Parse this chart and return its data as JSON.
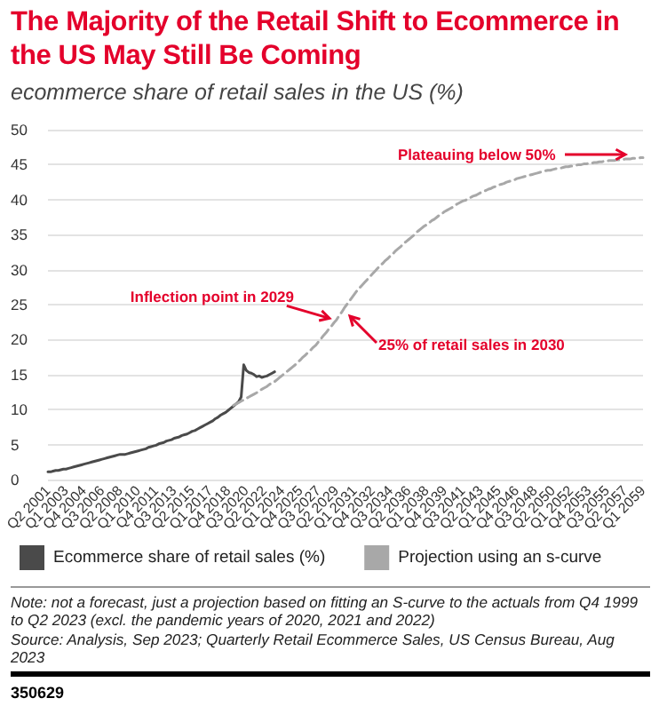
{
  "chart_data": {
    "type": "line",
    "title": "The Majority of the Retail Shift to Ecommerce in the US May Still Be Coming",
    "subtitle": "ecommerce share of retail sales in the US (%)",
    "categories": [
      "Q2 2001",
      null,
      null,
      null,
      null,
      null,
      null,
      "Q1 2003",
      null,
      null,
      null,
      null,
      null,
      null,
      "Q4 2004",
      null,
      null,
      null,
      null,
      null,
      null,
      "Q3 2006",
      null,
      null,
      null,
      null,
      null,
      null,
      "Q2 2008",
      null,
      null,
      null,
      null,
      null,
      null,
      "Q1 2010",
      null,
      null,
      null,
      null,
      null,
      null,
      "Q4 2011",
      null,
      null,
      null,
      null,
      null,
      null,
      "Q3 2013",
      null,
      null,
      null,
      null,
      null,
      null,
      "Q2 2015",
      null,
      null,
      null,
      null,
      null,
      null,
      "Q1 2017",
      null,
      null,
      null,
      null,
      null,
      null,
      "Q4 2018",
      null,
      null,
      null,
      null,
      null,
      null,
      "Q3 2020",
      null,
      null,
      null,
      null,
      null,
      null,
      "Q2 2022",
      null,
      null,
      null,
      null,
      null,
      null,
      "Q1 2024",
      null,
      null,
      null,
      null,
      null,
      null,
      "Q4 2025",
      null,
      null,
      null,
      null,
      null,
      null,
      "Q3 2027",
      null,
      null,
      null,
      null,
      null,
      null,
      "Q2 2029",
      null,
      null,
      null,
      null,
      null,
      null,
      "Q1 2031",
      null,
      null,
      null,
      null,
      null,
      null,
      "Q4 2032",
      null,
      null,
      null,
      null,
      null,
      null,
      "Q3 2034",
      null,
      null,
      null,
      null,
      null,
      null,
      "Q2 2036",
      null,
      null,
      null,
      null,
      null,
      null,
      "Q1 2038",
      null,
      null,
      null,
      null,
      null,
      null,
      "Q4 2039",
      null,
      null,
      null,
      null,
      null,
      null,
      "Q3 2041",
      null,
      null,
      null,
      null,
      null,
      null,
      "Q2 2043",
      null,
      null,
      null,
      null,
      null,
      null,
      "Q1 2045",
      null,
      null,
      null,
      null,
      null,
      null,
      "Q4 2046",
      null,
      null,
      null,
      null,
      null,
      null,
      "Q3 2048",
      null,
      null,
      null,
      null,
      null,
      null,
      "Q2 2050",
      null,
      null,
      null,
      null,
      null,
      null,
      "Q1 2052",
      null,
      null,
      null,
      null,
      null,
      null,
      "Q4 2053",
      null,
      null,
      null,
      null,
      null,
      null,
      "Q3 2055",
      null,
      null,
      null,
      null,
      null,
      null,
      "Q2 2057",
      null,
      null,
      null,
      null,
      null,
      null,
      "Q1 2059"
    ],
    "series": [
      {
        "name": "Ecommerce share of retail sales (%)",
        "color": "#4a4a4a",
        "line_style": "solid",
        "values": [
          1.1,
          1.1,
          1.2,
          1.3,
          1.3,
          1.4,
          1.5,
          1.5,
          1.6,
          1.7,
          1.8,
          1.9,
          2.0,
          2.1,
          2.2,
          2.3,
          2.4,
          2.5,
          2.6,
          2.7,
          2.8,
          2.9,
          3.0,
          3.1,
          3.2,
          3.3,
          3.4,
          3.5,
          3.6,
          3.6,
          3.6,
          3.7,
          3.8,
          3.9,
          4.0,
          4.1,
          4.2,
          4.3,
          4.4,
          4.6,
          4.7,
          4.8,
          4.9,
          5.1,
          5.2,
          5.3,
          5.5,
          5.6,
          5.7,
          5.9,
          6.0,
          6.1,
          6.3,
          6.4,
          6.5,
          6.7,
          6.9,
          7.0,
          7.2,
          7.4,
          7.6,
          7.8,
          8.0,
          8.2,
          8.4,
          8.7,
          8.9,
          9.2,
          9.4,
          9.6,
          9.9,
          10.2,
          10.5,
          10.8,
          11.1,
          11.8,
          16.4,
          15.6,
          15.3,
          15.2,
          15.0,
          14.7,
          14.8,
          14.6,
          14.7,
          14.8,
          15.0,
          15.2,
          15.4,
          null,
          null,
          null,
          null,
          null,
          null,
          null,
          null,
          null,
          null,
          null,
          null,
          null,
          null,
          null,
          null,
          null,
          null,
          null,
          null,
          null,
          null,
          null,
          null,
          null,
          null,
          null,
          null,
          null,
          null,
          null,
          null,
          null,
          null,
          null,
          null,
          null,
          null,
          null,
          null,
          null,
          null,
          null,
          null,
          null,
          null,
          null,
          null,
          null,
          null,
          null,
          null,
          null,
          null,
          null,
          null,
          null,
          null,
          null,
          null,
          null,
          null,
          null,
          null,
          null,
          null,
          null,
          null,
          null,
          null,
          null,
          null,
          null,
          null,
          null,
          null,
          null,
          null,
          null,
          null,
          null,
          null,
          null,
          null,
          null,
          null,
          null,
          null,
          null,
          null,
          null,
          null,
          null,
          null,
          null,
          null,
          null,
          null,
          null,
          null,
          null,
          null,
          null,
          null,
          null,
          null,
          null,
          null,
          null,
          null,
          null,
          null,
          null,
          null,
          null,
          null,
          null,
          null,
          null,
          null,
          null,
          null,
          null,
          null,
          null,
          null,
          null,
          null,
          null,
          null,
          null,
          null,
          null,
          null,
          null,
          null,
          null,
          null,
          null,
          null,
          null,
          null,
          null
        ]
      },
      {
        "name": "Projection using an s-curve",
        "color": "#a8a8a8",
        "line_style": "dashed",
        "values": [
          null,
          null,
          null,
          null,
          null,
          null,
          null,
          null,
          null,
          null,
          null,
          null,
          null,
          null,
          null,
          null,
          null,
          null,
          null,
          null,
          null,
          null,
          null,
          null,
          null,
          null,
          null,
          null,
          null,
          null,
          null,
          null,
          null,
          null,
          null,
          null,
          null,
          null,
          null,
          null,
          null,
          null,
          null,
          null,
          null,
          null,
          null,
          null,
          null,
          null,
          null,
          null,
          null,
          null,
          null,
          null,
          null,
          null,
          null,
          null,
          null,
          null,
          null,
          null,
          null,
          null,
          null,
          null,
          null,
          null,
          null,
          null,
          10.6,
          10.8,
          11.0,
          11.2,
          11.4,
          11.6,
          11.8,
          12.0,
          12.2,
          12.4,
          12.7,
          12.9,
          13.1,
          13.3,
          13.6,
          13.8,
          14.0,
          14.3,
          14.6,
          14.9,
          15.2,
          15.5,
          15.8,
          16.1,
          16.4,
          16.8,
          17.1,
          17.5,
          17.8,
          18.2,
          18.5,
          18.9,
          19.2,
          19.7,
          20.1,
          20.6,
          21.0,
          21.5,
          21.9,
          22.4,
          22.8,
          23.4,
          23.9,
          24.5,
          25.0,
          25.5,
          26.0,
          26.5,
          27.0,
          27.4,
          27.8,
          28.2,
          28.6,
          29.0,
          29.4,
          29.8,
          30.2,
          30.6,
          30.9,
          31.3,
          31.6,
          32.0,
          32.3,
          32.7,
          33.0,
          33.3,
          33.7,
          34.0,
          34.3,
          34.6,
          34.9,
          35.3,
          35.6,
          35.9,
          36.2,
          36.4,
          36.7,
          37.0,
          37.2,
          37.5,
          37.8,
          38.0,
          38.3,
          38.5,
          38.7,
          38.9,
          39.2,
          39.4,
          39.6,
          39.8,
          39.9,
          40.1,
          40.3,
          40.5,
          40.6,
          40.8,
          41.0,
          41.2,
          41.3,
          41.5,
          41.6,
          41.8,
          41.9,
          42.1,
          42.2,
          42.3,
          42.5,
          42.6,
          42.7,
          42.8,
          43.0,
          43.1,
          43.2,
          43.3,
          43.4,
          43.5,
          43.6,
          43.7,
          43.8,
          43.9,
          44.0,
          44.1,
          44.2,
          44.2,
          44.3,
          44.4,
          44.5,
          44.5,
          44.6,
          44.7,
          44.7,
          44.8,
          44.8,
          44.9,
          45.0,
          45.0,
          45.1,
          45.1,
          45.2,
          45.2,
          45.3,
          45.3,
          45.4,
          45.4,
          45.5,
          45.5,
          45.6,
          45.6,
          45.6,
          45.7,
          45.7,
          45.7,
          45.8,
          45.8,
          45.8,
          45.9,
          45.9,
          45.9,
          46.0,
          46.0
        ]
      }
    ],
    "ylim": [
      0,
      50
    ],
    "yticks": [
      0,
      5,
      10,
      15,
      20,
      25,
      30,
      35,
      40,
      45,
      50
    ],
    "grid": "y",
    "legend": "bottom",
    "marker": "none",
    "annotations": [
      {
        "text": "Inflection point in 2029",
        "x": "Q2 2029",
        "y": 22.8
      },
      "25% of retail sales in 2030",
      "Plateauing below 50%",
      "Note: not a forecast, just a projection based on fitting an S-curve to the actuals from Q4 1999 to Q2 2023 (excl. the pandemic years of 2020, 2021 and 2022)",
      "Source: Analysis, Sep 2023; Quarterly Retail Ecommerce Sales, US Census Bureau, Aug 2023",
      "350629"
    ]
  }
}
